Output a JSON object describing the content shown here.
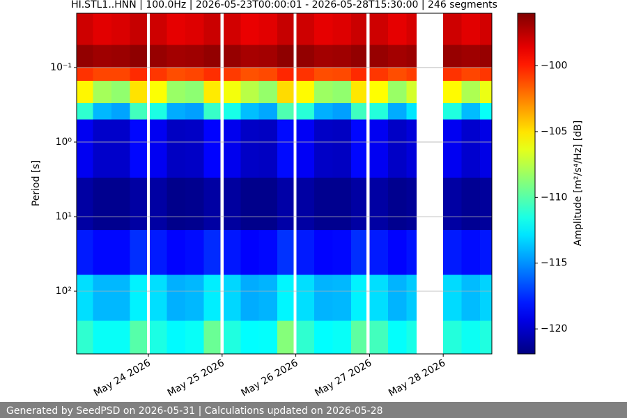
{
  "chart_data": {
    "type": "heatmap",
    "title": "HI.STL1..HNN | 100.0Hz | 2026-05-23T00:00:01 - 2026-05-28T15:30:00 | 246 segments",
    "y_label": "Period [s]",
    "colorbar_label": "Amplitude [m²/s⁴/Hz] [dB]",
    "colormap": "jet",
    "log_y": true,
    "grid": true,
    "xlim": [
      23.026,
      28.66
    ],
    "xticks": [
      {
        "value": 24,
        "label": "May 24 2026"
      },
      {
        "value": 25,
        "label": "May 25 2026"
      },
      {
        "value": 26,
        "label": "May 26 2026"
      },
      {
        "value": 27,
        "label": "May 27 2026"
      },
      {
        "value": 28,
        "label": "May 28 2026"
      }
    ],
    "ylim": [
      0.0187,
      693
    ],
    "yticks": [
      {
        "value": 0.1,
        "label": "10⁻¹"
      },
      {
        "value": 1,
        "label": "10⁰"
      },
      {
        "value": 10,
        "label": "10¹"
      },
      {
        "value": 100,
        "label": "10²"
      }
    ],
    "zlim": [
      -121.9,
      -96.0
    ],
    "zticks": [
      {
        "value": -100,
        "label": "−100"
      },
      {
        "value": -105,
        "label": "−105"
      },
      {
        "value": -110,
        "label": "−110"
      },
      {
        "value": -115,
        "label": "−115"
      },
      {
        "value": -120,
        "label": "−120"
      }
    ],
    "xbins": [
      23.026,
      23.25,
      23.5,
      23.75,
      23.98,
      24.02,
      24.25,
      24.5,
      24.75,
      24.98,
      25.02,
      25.25,
      25.5,
      25.75,
      25.97,
      26.01,
      26.25,
      26.5,
      26.75,
      26.96,
      27.0,
      27.25,
      27.5,
      27.64,
      28.0,
      28.25,
      28.5,
      28.66
    ],
    "ybins": [
      0.0187,
      0.05,
      0.1,
      0.15,
      0.3,
      0.5,
      3,
      15,
      60,
      250,
      693
    ],
    "z": [
      [
        -98,
        -96.5,
        -100.5,
        -105.5,
        -111,
        -119,
        -121,
        -118,
        -113,
        -111
      ],
      [
        -98.5,
        -96.8,
        -101,
        -108,
        -114,
        -120,
        -121.5,
        -118.5,
        -114,
        -112
      ],
      [
        -98.3,
        -96.7,
        -101,
        -108.5,
        -114.5,
        -120,
        -121.5,
        -118.5,
        -114,
        -112
      ],
      [
        -97.8,
        -96.4,
        -100.3,
        -105,
        -110.5,
        -118.5,
        -121,
        -117.5,
        -112.5,
        -110
      ],
      null,
      [
        -98,
        -96.6,
        -100.6,
        -105.8,
        -111.5,
        -119,
        -121,
        -118,
        -113,
        -111.5
      ],
      [
        -98.6,
        -96.9,
        -101.2,
        -108.3,
        -114.3,
        -120.2,
        -121.6,
        -118.6,
        -114.2,
        -112.3
      ],
      [
        -98.4,
        -96.8,
        -101,
        -108.6,
        -114.6,
        -120.1,
        -121.5,
        -118.4,
        -114,
        -112
      ],
      [
        -97.9,
        -96.5,
        -100.4,
        -105.2,
        -110.8,
        -118.6,
        -121,
        -117.6,
        -112.6,
        -109.5
      ],
      null,
      [
        -98.1,
        -96.6,
        -100.7,
        -106,
        -111.6,
        -119.1,
        -121.1,
        -118.1,
        -113.2,
        -111.4
      ],
      [
        -98.7,
        -97,
        -101.3,
        -107.5,
        -113.8,
        -120.1,
        -121.6,
        -118.7,
        -114.3,
        -112.2
      ],
      [
        -98.5,
        -96.9,
        -101.1,
        -108.4,
        -114.4,
        -120.2,
        -121.6,
        -118.5,
        -114.1,
        -112.1
      ],
      [
        -97.8,
        -96.4,
        -100.2,
        -104.8,
        -110.2,
        -118.4,
        -120.9,
        -117.4,
        -112.4,
        -108.8
      ],
      null,
      [
        -98,
        -96.5,
        -100.5,
        -105.6,
        -111.2,
        -118.9,
        -121,
        -118,
        -113,
        -111
      ],
      [
        -98.6,
        -96.9,
        -101.2,
        -108.2,
        -114.2,
        -120.1,
        -121.5,
        -118.6,
        -114.1,
        -112.2
      ],
      [
        -98.4,
        -96.8,
        -101.1,
        -108.5,
        -114.6,
        -120.2,
        -121.5,
        -118.5,
        -114,
        -112
      ],
      [
        -97.9,
        -96.5,
        -100.3,
        -105.1,
        -110.6,
        -118.5,
        -121,
        -117.5,
        -112.5,
        -109.8
      ],
      null,
      [
        -98,
        -96.6,
        -100.6,
        -105.7,
        -111.3,
        -119,
        -121,
        -118,
        -113,
        -110.5
      ],
      [
        -98.6,
        -96.9,
        -101.2,
        -108.3,
        -114.3,
        -120.1,
        -121.5,
        -118.6,
        -114.1,
        -112.1
      ],
      [
        -98.2,
        -96.7,
        -100.8,
        -106.8,
        -112.8,
        -119.6,
        -121.3,
        -118.2,
        -113.5,
        -111.6
      ],
      null,
      [
        -98,
        -96.6,
        -100.5,
        -105.6,
        -111.4,
        -119,
        -121,
        -118,
        -113.1,
        -111.3
      ],
      [
        -98.5,
        -96.8,
        -101,
        -107.8,
        -113.9,
        -119.9,
        -121.4,
        -118.4,
        -113.9,
        -111.9
      ],
      [
        -98.1,
        -96.6,
        -100.6,
        -106.2,
        -112,
        -119.3,
        -121.2,
        -118.1,
        -113.3,
        -111.4
      ]
    ],
    "footer": "Generated by SeedPSD on 2026-05-31 | Calculations updated on 2026-05-28"
  }
}
